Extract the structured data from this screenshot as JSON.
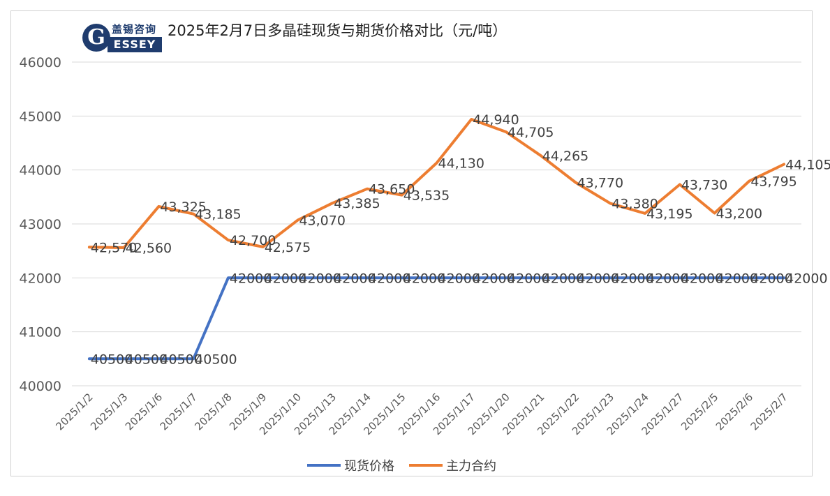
{
  "logo": {
    "chinese": "盖锡咨询",
    "english_initial": "G",
    "english_rest": "ESSEY"
  },
  "colors": {
    "spot": "#4472c4",
    "futures": "#ed7d31",
    "grid": "#d9d9d9",
    "axis_text": "#595959",
    "label_text": "#404040"
  },
  "chart_data": {
    "type": "line",
    "title": "2025年2月7日多晶硅现货与期货价格对比（元/吨）",
    "xlabel": "",
    "ylabel": "",
    "ylim": [
      40000,
      46000
    ],
    "yticks": [
      "40000",
      "41000",
      "42000",
      "43000",
      "44000",
      "45000",
      "46000"
    ],
    "grid": "horizontal",
    "legend": "bottom",
    "categories": [
      "2025/1/2",
      "2025/1/3",
      "2025/1/6",
      "2025/1/7",
      "2025/1/8",
      "2025/1/9",
      "2025/1/10",
      "2025/1/13",
      "2025/1/14",
      "2025/1/15",
      "2025/1/16",
      "2025/1/17",
      "2025/1/20",
      "2025/1/21",
      "2025/1/22",
      "2025/1/23",
      "2025/1/24",
      "2025/1/27",
      "2025/2/5",
      "2025/2/6",
      "2025/2/7"
    ],
    "series": [
      {
        "name": "现货价格",
        "color": "#4472c4",
        "values": [
          40500,
          40500,
          40500,
          40500,
          42000,
          42000,
          42000,
          42000,
          42000,
          42000,
          42000,
          42000,
          42000,
          42000,
          42000,
          42000,
          42000,
          42000,
          42000,
          42000,
          42000
        ],
        "labels": [
          "40500",
          "40500",
          "40500",
          "40500",
          "42000",
          "42000",
          "42000",
          "42000",
          "42000",
          "42000",
          "42000",
          "42000",
          "42000",
          "42000",
          "42000",
          "42000",
          "42000",
          "42000",
          "42000",
          "42000",
          "42000"
        ]
      },
      {
        "name": "主力合约",
        "color": "#ed7d31",
        "values": [
          42570,
          42560,
          43325,
          43185,
          42700,
          42575,
          43070,
          43385,
          43650,
          43535,
          44130,
          44940,
          44705,
          44265,
          43770,
          43380,
          43195,
          43730,
          43200,
          43795,
          44105
        ],
        "labels": [
          "42,570",
          "42,560",
          "43,325",
          "43,185",
          "42,700",
          "42,575",
          "43,070",
          "43,385",
          "43,650",
          "43,535",
          "44,130",
          "44,940",
          "44,705",
          "44,265",
          "43,770",
          "43,380",
          "43,195",
          "43,730",
          "43,200",
          "43,795",
          "44,105"
        ]
      }
    ]
  }
}
